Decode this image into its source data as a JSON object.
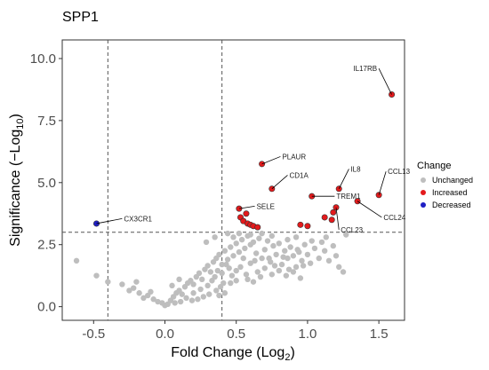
{
  "chart_data": {
    "type": "scatter",
    "title": "SPP1",
    "xlabel": "Fold Change (Log",
    "xlabel_sub": "2",
    "xlabel_end": ")",
    "ylabel": "Significance (−Log",
    "ylabel_sub": "10",
    "ylabel_end": ")",
    "xlim": [
      -0.72,
      1.68
    ],
    "ylim": [
      -0.55,
      10.75
    ],
    "x_ticks": [
      -0.5,
      0.0,
      0.5,
      1.0,
      1.5
    ],
    "x_tick_labels": [
      "-0.5",
      "0.0",
      "0.5",
      "1.0",
      "1.5"
    ],
    "y_ticks": [
      0.0,
      2.5,
      5.0,
      7.5,
      10.0
    ],
    "y_tick_labels": [
      "0.0",
      "2.5",
      "5.0",
      "7.5",
      "10.0"
    ],
    "grid": false,
    "thresholds": {
      "x": [
        -0.4,
        0.4
      ],
      "y": [
        3.0
      ]
    },
    "legend": {
      "title": "Change",
      "position": "right",
      "entries": [
        {
          "label": "Unchanged",
          "color": "#bebebe"
        },
        {
          "label": "Increased",
          "color": "#e31a1c"
        },
        {
          "label": "Decreased",
          "color": "#1f1fc4"
        }
      ]
    },
    "series": [
      {
        "name": "Unchanged",
        "color": "#bebebe",
        "points": [
          [
            -0.62,
            1.85
          ],
          [
            -0.48,
            1.25
          ],
          [
            -0.4,
            1.0
          ],
          [
            -0.3,
            0.9
          ],
          [
            -0.22,
            0.75
          ],
          [
            -0.18,
            0.55
          ],
          [
            -0.12,
            0.45
          ],
          [
            -0.15,
            0.35
          ],
          [
            -0.08,
            0.3
          ],
          [
            -0.05,
            0.2
          ],
          [
            -0.02,
            0.15
          ],
          [
            0.0,
            0.05
          ],
          [
            0.02,
            0.1
          ],
          [
            0.04,
            0.25
          ],
          [
            0.06,
            0.4
          ],
          [
            0.08,
            0.55
          ],
          [
            0.1,
            0.65
          ],
          [
            0.12,
            0.5
          ],
          [
            0.14,
            0.8
          ],
          [
            0.16,
            0.95
          ],
          [
            0.18,
            1.05
          ],
          [
            0.2,
            0.9
          ],
          [
            0.22,
            1.2
          ],
          [
            0.24,
            1.35
          ],
          [
            0.26,
            1.1
          ],
          [
            0.28,
            1.5
          ],
          [
            0.3,
            1.65
          ],
          [
            0.32,
            1.4
          ],
          [
            0.34,
            1.8
          ],
          [
            0.36,
            1.95
          ],
          [
            0.38,
            2.1
          ],
          [
            0.4,
            1.7
          ],
          [
            0.42,
            2.25
          ],
          [
            0.44,
            1.9
          ],
          [
            0.46,
            2.4
          ],
          [
            0.48,
            2.05
          ],
          [
            0.5,
            2.55
          ],
          [
            0.52,
            2.2
          ],
          [
            0.54,
            2.7
          ],
          [
            0.56,
            2.35
          ],
          [
            0.58,
            2.85
          ],
          [
            0.6,
            2.5
          ],
          [
            0.62,
            2.6
          ],
          [
            0.64,
            2.15
          ],
          [
            0.66,
            2.75
          ],
          [
            0.68,
            1.95
          ],
          [
            0.7,
            2.3
          ],
          [
            0.72,
            2.65
          ],
          [
            0.74,
            1.8
          ],
          [
            0.76,
            2.45
          ],
          [
            0.78,
            2.1
          ],
          [
            0.8,
            2.55
          ],
          [
            0.82,
            1.7
          ],
          [
            0.84,
            2.25
          ],
          [
            0.86,
            1.95
          ],
          [
            0.88,
            2.4
          ],
          [
            0.9,
            2.05
          ],
          [
            0.92,
            1.6
          ],
          [
            0.94,
            2.2
          ],
          [
            0.96,
            1.85
          ],
          [
            0.98,
            2.5
          ],
          [
            1.0,
            2.1
          ],
          [
            1.02,
            1.75
          ],
          [
            1.05,
            2.35
          ],
          [
            1.08,
            1.95
          ],
          [
            1.1,
            2.6
          ],
          [
            1.12,
            2.25
          ],
          [
            1.15,
            1.85
          ],
          [
            1.18,
            2.45
          ],
          [
            1.2,
            2.05
          ],
          [
            1.22,
            1.6
          ],
          [
            1.25,
            1.4
          ],
          [
            0.05,
            0.85
          ],
          [
            0.1,
            1.1
          ],
          [
            0.15,
            0.35
          ],
          [
            0.2,
            0.55
          ],
          [
            0.25,
            0.7
          ],
          [
            0.3,
            0.85
          ],
          [
            0.35,
            1.2
          ],
          [
            0.4,
            1.35
          ],
          [
            0.45,
            1.55
          ],
          [
            0.5,
            1.45
          ],
          [
            0.55,
            1.95
          ],
          [
            0.6,
            1.75
          ],
          [
            0.65,
            1.4
          ],
          [
            0.7,
            1.55
          ],
          [
            0.75,
            1.3
          ],
          [
            0.8,
            1.45
          ],
          [
            0.85,
            1.25
          ],
          [
            0.9,
            1.4
          ],
          [
            0.95,
            1.15
          ],
          [
            0.33,
            1.05
          ],
          [
            0.37,
            1.45
          ],
          [
            0.43,
            1.7
          ],
          [
            0.47,
            1.25
          ],
          [
            0.53,
            1.6
          ],
          [
            0.57,
            1.3
          ],
          [
            0.63,
            1.85
          ],
          [
            0.67,
            1.2
          ],
          [
            0.73,
            1.95
          ],
          [
            0.77,
            1.65
          ],
          [
            0.83,
            2.0
          ],
          [
            0.87,
            1.5
          ],
          [
            0.93,
            2.3
          ],
          [
            0.97,
            1.65
          ],
          [
            0.41,
            0.95
          ],
          [
            0.39,
            0.8
          ],
          [
            0.36,
            0.65
          ],
          [
            0.31,
            0.5
          ],
          [
            0.27,
            0.4
          ],
          [
            0.23,
            0.3
          ],
          [
            0.19,
            0.25
          ],
          [
            0.11,
            0.2
          ],
          [
            0.07,
            0.15
          ],
          [
            -0.1,
            0.6
          ],
          [
            -0.2,
            1.0
          ],
          [
            -0.25,
            0.65
          ],
          [
            0.29,
            2.6
          ],
          [
            0.35,
            2.8
          ],
          [
            0.44,
            2.95
          ],
          [
            0.52,
            2.95
          ],
          [
            0.48,
            2.8
          ],
          [
            0.6,
            2.9
          ],
          [
            0.68,
            2.95
          ],
          [
            0.75,
            2.85
          ],
          [
            0.86,
            2.7
          ],
          [
            0.92,
            2.8
          ],
          [
            1.03,
            2.65
          ],
          [
            1.13,
            2.8
          ],
          [
            1.27,
            2.9
          ],
          [
            0.58,
            1.1
          ],
          [
            0.62,
            1.0
          ],
          [
            0.46,
            0.95
          ],
          [
            0.5,
            1.05
          ],
          [
            0.42,
            0.55
          ],
          [
            0.38,
            0.45
          ]
        ]
      },
      {
        "name": "Increased",
        "color": "#e31a1c",
        "points": [
          [
            1.59,
            8.55
          ],
          [
            0.68,
            5.75
          ],
          [
            0.75,
            4.75
          ],
          [
            1.22,
            4.75
          ],
          [
            1.5,
            4.5
          ],
          [
            1.03,
            4.45
          ],
          [
            1.35,
            4.25
          ],
          [
            0.52,
            3.95
          ],
          [
            1.2,
            4.0
          ],
          [
            1.18,
            3.8
          ],
          [
            0.53,
            3.6
          ],
          [
            0.57,
            3.75
          ],
          [
            0.55,
            3.45
          ],
          [
            0.58,
            3.35
          ],
          [
            0.6,
            3.3
          ],
          [
            0.62,
            3.25
          ],
          [
            0.65,
            3.2
          ],
          [
            0.95,
            3.3
          ],
          [
            1.0,
            3.25
          ],
          [
            1.12,
            3.6
          ],
          [
            1.17,
            3.5
          ]
        ]
      },
      {
        "name": "Decreased",
        "color": "#1f1fc4",
        "points": [
          [
            -0.48,
            3.35
          ]
        ]
      }
    ],
    "annotations": [
      {
        "text": "IL17RB",
        "x": 1.59,
        "y": 8.55,
        "lx": 1.5,
        "ly": 9.6
      },
      {
        "text": "PLAUR",
        "x": 0.68,
        "y": 5.75,
        "lx": 0.81,
        "ly": 6.05
      },
      {
        "text": "CD1A",
        "x": 0.75,
        "y": 4.75,
        "lx": 0.86,
        "ly": 5.3
      },
      {
        "text": "IL8",
        "x": 1.22,
        "y": 4.75,
        "lx": 1.29,
        "ly": 5.55
      },
      {
        "text": "CCL13",
        "x": 1.5,
        "y": 4.5,
        "lx": 1.55,
        "ly": 5.45
      },
      {
        "text": "TREM1",
        "x": 1.03,
        "y": 4.45,
        "lx": 1.19,
        "ly": 4.45
      },
      {
        "text": "SELE",
        "x": 0.52,
        "y": 3.95,
        "lx": 0.63,
        "ly": 4.05
      },
      {
        "text": "CCL24",
        "x": 1.35,
        "y": 4.25,
        "lx": 1.52,
        "ly": 3.6
      },
      {
        "text": "CCL23",
        "x": 1.2,
        "y": 4.0,
        "lx": 1.22,
        "ly": 3.1
      },
      {
        "text": "CX3CR1",
        "x": -0.48,
        "y": 3.35,
        "lx": -0.3,
        "ly": 3.55
      }
    ]
  }
}
